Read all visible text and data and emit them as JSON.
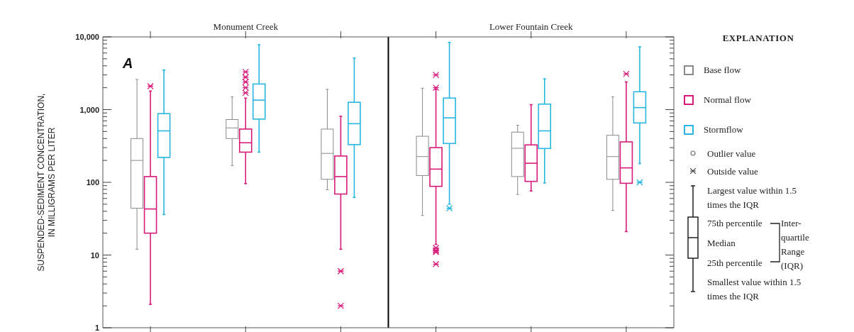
{
  "chart_data": [
    {
      "type": "box",
      "ylabel": "SUSPENDED-SEDIMENT CONCENTRATION, IN MILLIGRAMS PER LITER",
      "annotations": [
        "A",
        "Monument Creek",
        "Lower Fountain Creek"
      ],
      "categories": [
        null,
        null,
        null,
        null,
        null,
        null
      ],
      "log": true,
      "ylim": [
        1,
        10000
      ],
      "yticks": [
        1,
        {
          "value": 2,
          "label": null
        },
        {
          "value": 3,
          "label": null
        },
        {
          "value": 4,
          "label": null
        },
        {
          "value": 5,
          "label": null
        },
        {
          "value": 6,
          "label": null
        },
        {
          "value": 7,
          "label": null
        },
        {
          "value": 8,
          "label": null
        },
        {
          "value": 9,
          "label": null
        },
        10,
        {
          "value": 20,
          "label": null
        },
        {
          "value": 30,
          "label": null
        },
        {
          "value": 40,
          "label": null
        },
        {
          "value": 50,
          "label": null
        },
        {
          "value": 60,
          "label": null
        },
        {
          "value": 70,
          "label": null
        },
        {
          "value": 80,
          "label": null
        },
        {
          "value": 90,
          "label": null
        },
        100,
        {
          "value": 200,
          "label": null
        },
        {
          "value": 300,
          "label": null
        },
        {
          "value": 400,
          "label": null
        },
        {
          "value": 500,
          "label": null
        },
        {
          "value": 600,
          "label": null
        },
        {
          "value": 700,
          "label": null
        },
        {
          "value": 800,
          "label": null
        },
        {
          "value": 900,
          "label": null
        },
        {
          "value": 1000,
          "label": "1,000"
        },
        {
          "value": 2000,
          "label": null
        },
        {
          "value": 3000,
          "label": null
        },
        {
          "value": 4000,
          "label": null
        },
        {
          "value": 5000,
          "label": null
        },
        {
          "value": 6000,
          "label": null
        },
        {
          "value": 7000,
          "label": null
        },
        {
          "value": 8000,
          "label": null
        },
        {
          "value": 9000,
          "label": null
        },
        {
          "value": 10000,
          "label": "10,000"
        }
      ],
      "tick_labels": "y",
      "legend": "right",
      "legend_title": "EXPLANATION",
      "series": [
        {
          "name": "Base flow",
          "color": "#8a8a8a",
          "boxes": [
            {
              "low": 12,
              "q1": 44,
              "median": 200,
              "q3": 400,
              "high": 2600
            },
            {
              "low": 170,
              "q1": 400,
              "median": 560,
              "q3": 730,
              "high": 1500
            },
            {
              "low": 79,
              "q1": 110,
              "median": 250,
              "q3": 540,
              "high": 1900
            },
            {
              "low": 35,
              "q1": 124,
              "median": 226,
              "q3": 430,
              "high": 1970
            },
            {
              "low": 68,
              "q1": 120,
              "median": 294,
              "q3": 490,
              "high": 610
            },
            {
              "low": 41,
              "q1": 110,
              "median": 226,
              "q3": 444,
              "high": 1500
            }
          ]
        },
        {
          "name": "Normal flow",
          "color": "#d81b7a",
          "boxes": [
            {
              "low": 2.1,
              "q1": 20,
              "median": 43,
              "q3": 120,
              "high": 1800,
              "outliers": [
                2100
              ]
            },
            {
              "low": 96,
              "q1": 260,
              "median": 350,
              "q3": 540,
              "high": 1440,
              "outliers": [
                1700,
                2000,
                2400,
                2800,
                3300
              ]
            },
            {
              "low": 12,
              "q1": 69,
              "median": 120,
              "q3": 230,
              "high": 810,
              "outliers": [
                6,
                2
              ]
            },
            {
              "low": 14,
              "q1": 88,
              "median": 152,
              "q3": 300,
              "high": 1900,
              "outliers": [
                2000,
                3000,
                12.5,
                11.5,
                11,
                7.5
              ]
            },
            {
              "low": 76,
              "q1": 103,
              "median": 183,
              "q3": 327,
              "high": 1170
            },
            {
              "low": 21,
              "q1": 97,
              "median": 158,
              "q3": 360,
              "high": 2400,
              "outliers": [
                3100
              ]
            }
          ]
        },
        {
          "name": "Stormflow",
          "color": "#29b6e0",
          "boxes": [
            {
              "low": 36,
              "q1": 220,
              "median": 510,
              "q3": 880,
              "high": 3500
            },
            {
              "low": 260,
              "q1": 740,
              "median": 1350,
              "q3": 2250,
              "high": 7800
            },
            {
              "low": 62,
              "q1": 330,
              "median": 640,
              "q3": 1260,
              "high": 5100
            },
            {
              "low": 50,
              "q1": 342,
              "median": 770,
              "q3": 1440,
              "high": 8400,
              "outliers": [
                44
              ]
            },
            {
              "low": 98,
              "q1": 292,
              "median": 510,
              "q3": 1190,
              "high": 2650
            },
            {
              "low": 181,
              "q1": 656,
              "median": 1065,
              "q3": 1760,
              "high": 7300,
              "outliers": [
                100
              ]
            }
          ]
        }
      ]
    },
    {
      "type": "other",
      "annotations": [
        "Outlier value",
        "Outside value",
        "Largest value within 1.5 times the IQR",
        "75th percentile",
        "Median",
        "25th percentile",
        "Inter-quartile Range (IQR)",
        "Smallest value within 1.5 times the IQR"
      ]
    }
  ]
}
